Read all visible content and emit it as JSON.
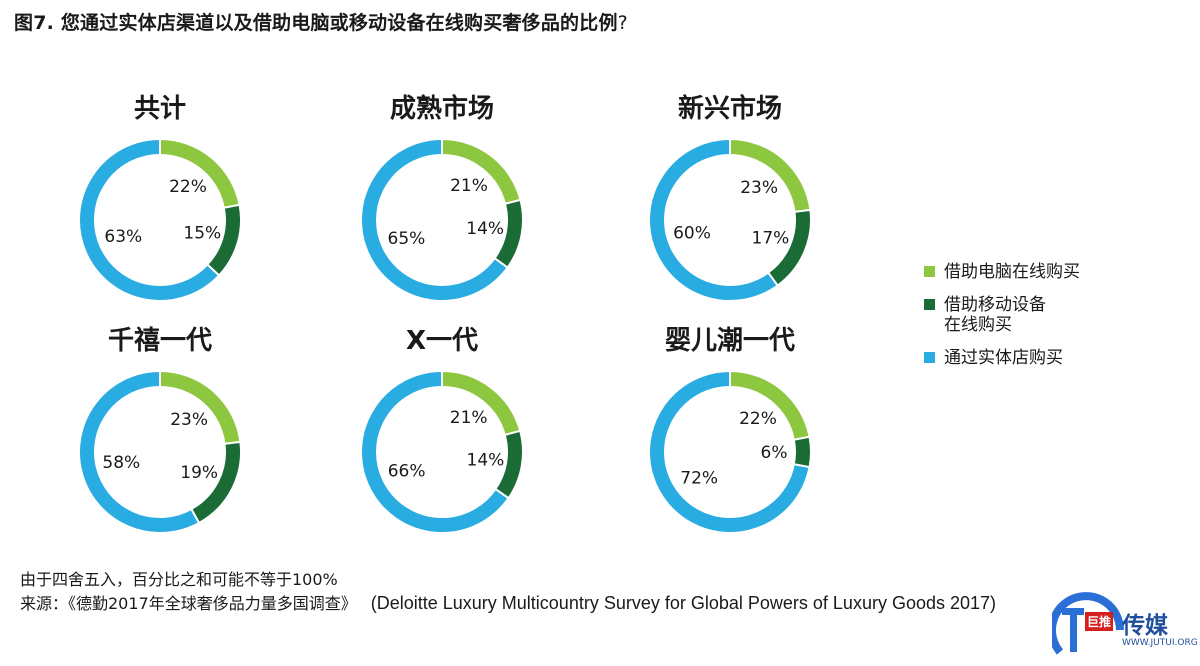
{
  "figure": {
    "title": "图7. 您通过实体店渠道以及借助电脑或移动设备在线购买奢侈品的比例",
    "title_mark": "?"
  },
  "colors": {
    "computer": "#8dc63f",
    "mobile": "#1b6b36",
    "store": "#28ace2"
  },
  "chart_data": [
    {
      "type": "pie",
      "title": "共计",
      "series": [
        {
          "name": "借助电脑在线购买",
          "value": 22,
          "label": "22%"
        },
        {
          "name": "借助移动设备在线购买",
          "value": 15,
          "label": "15%"
        },
        {
          "name": "通过实体店购买",
          "value": 63,
          "label": "63%"
        }
      ]
    },
    {
      "type": "pie",
      "title": "成熟市场",
      "series": [
        {
          "name": "借助电脑在线购买",
          "value": 21,
          "label": "21%"
        },
        {
          "name": "借助移动设备在线购买",
          "value": 14,
          "label": "14%"
        },
        {
          "name": "通过实体店购买",
          "value": 65,
          "label": "65%"
        }
      ]
    },
    {
      "type": "pie",
      "title": "新兴市场",
      "series": [
        {
          "name": "借助电脑在线购买",
          "value": 23,
          "label": "23%"
        },
        {
          "name": "借助移动设备在线购买",
          "value": 17,
          "label": "17%"
        },
        {
          "name": "通过实体店购买",
          "value": 60,
          "label": "60%"
        }
      ]
    },
    {
      "type": "pie",
      "title": "千禧一代",
      "series": [
        {
          "name": "借助电脑在线购买",
          "value": 23,
          "label": "23%"
        },
        {
          "name": "借助移动设备在线购买",
          "value": 19,
          "label": "19%"
        },
        {
          "name": "通过实体店购买",
          "value": 58,
          "label": "58%"
        }
      ]
    },
    {
      "type": "pie",
      "title": "X一代",
      "series": [
        {
          "name": "借助电脑在线购买",
          "value": 21,
          "label": "21%"
        },
        {
          "name": "借助移动设备在线购买",
          "value": 14,
          "label": "14%"
        },
        {
          "name": "通过实体店购买",
          "value": 66,
          "label": "66%"
        }
      ]
    },
    {
      "type": "pie",
      "title": "婴儿潮一代",
      "series": [
        {
          "name": "借助电脑在线购买",
          "value": 22,
          "label": "22%"
        },
        {
          "name": "借助移动设备在线购买",
          "value": 6,
          "label": "6%"
        },
        {
          "name": "通过实体店购买",
          "value": 72,
          "label": "72%"
        }
      ]
    }
  ],
  "legend": {
    "placement": "right",
    "items": [
      {
        "label": "借助电脑在线购买",
        "color": "#8dc63f"
      },
      {
        "label": "借助移动设备\n在线购买",
        "color": "#1b6b36"
      },
      {
        "label": "通过实体店购买",
        "color": "#28ace2"
      }
    ]
  },
  "footnote": {
    "note": "由于四舍五入，百分比之和可能不等于100%",
    "source_cn": "来源：《德勤2017年全球奢侈品力量多国调查》",
    "source_en": "(Deloitte Luxury Multicountry Survey for Global Powers of Luxury Goods 2017)"
  },
  "watermark": {
    "mark": "巨推",
    "name": "传媒",
    "url": "WWW.JUTUI.ORG"
  }
}
